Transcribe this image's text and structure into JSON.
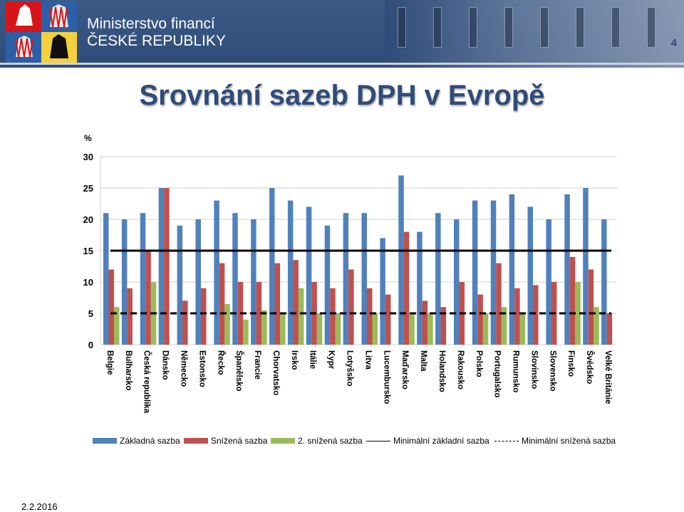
{
  "header": {
    "org_line1": "Ministerstvo financí",
    "org_line2": "ČESKÉ REPUBLIKY",
    "page_number": "4",
    "colors": {
      "bar": "#2f4c79"
    }
  },
  "title": "Srovnání sazeb DPH v Evropě",
  "footer": {
    "date": "2.2.2016"
  },
  "chart_data": {
    "type": "bar",
    "ylabel": "%",
    "ylim": [
      0,
      30
    ],
    "yticks": [
      0,
      5,
      10,
      15,
      20,
      25,
      30
    ],
    "grid": true,
    "legend_position": "bottom",
    "categories": [
      "Belgie",
      "Bulharsko",
      "Česká republika",
      "Dánsko",
      "Německo",
      "Estonsko",
      "Řecko",
      "Španělsko",
      "Francie",
      "Chorvatsko",
      "Irsko",
      "Itálie",
      "Kypr",
      "Lotyšsko",
      "Litva",
      "Lucembursko",
      "Maďarsko",
      "Malta",
      "Holandsko",
      "Rakousko",
      "Polsko",
      "Portugalsko",
      "Rumunsko",
      "Slovinsko",
      "Slovensko",
      "Finsko",
      "Švédsko",
      "Velké Británie"
    ],
    "series": [
      {
        "name": "Základná sazba",
        "color": "#4f81bd",
        "values": [
          21,
          20,
          21,
          25,
          19,
          20,
          23,
          21,
          20,
          25,
          23,
          22,
          19,
          21,
          21,
          17,
          27,
          18,
          21,
          20,
          23,
          23,
          24,
          22,
          20,
          24,
          25,
          20
        ]
      },
      {
        "name": "Snížená sazba",
        "color": "#c0504d",
        "values": [
          12,
          9,
          15,
          25,
          7,
          9,
          13,
          10,
          10,
          13,
          13.5,
          10,
          9,
          12,
          9,
          8,
          18,
          7,
          6,
          10,
          8,
          13,
          9,
          9.5,
          10,
          14,
          12,
          5
        ]
      },
      {
        "name": "2. snížená sazba",
        "color": "#9bbb59",
        "values": [
          6,
          null,
          10,
          null,
          null,
          null,
          6.5,
          4,
          5.5,
          5,
          9,
          5,
          5,
          null,
          5,
          null,
          5,
          5,
          null,
          null,
          5,
          6,
          5,
          null,
          null,
          10,
          6,
          null
        ]
      }
    ],
    "reference_lines": [
      {
        "name": "Minimální základní sazba",
        "value": 15,
        "style": "solid",
        "color": "#000000"
      },
      {
        "name": "Minimální snížená sazba",
        "value": 5,
        "style": "dashed",
        "color": "#000000"
      }
    ]
  }
}
